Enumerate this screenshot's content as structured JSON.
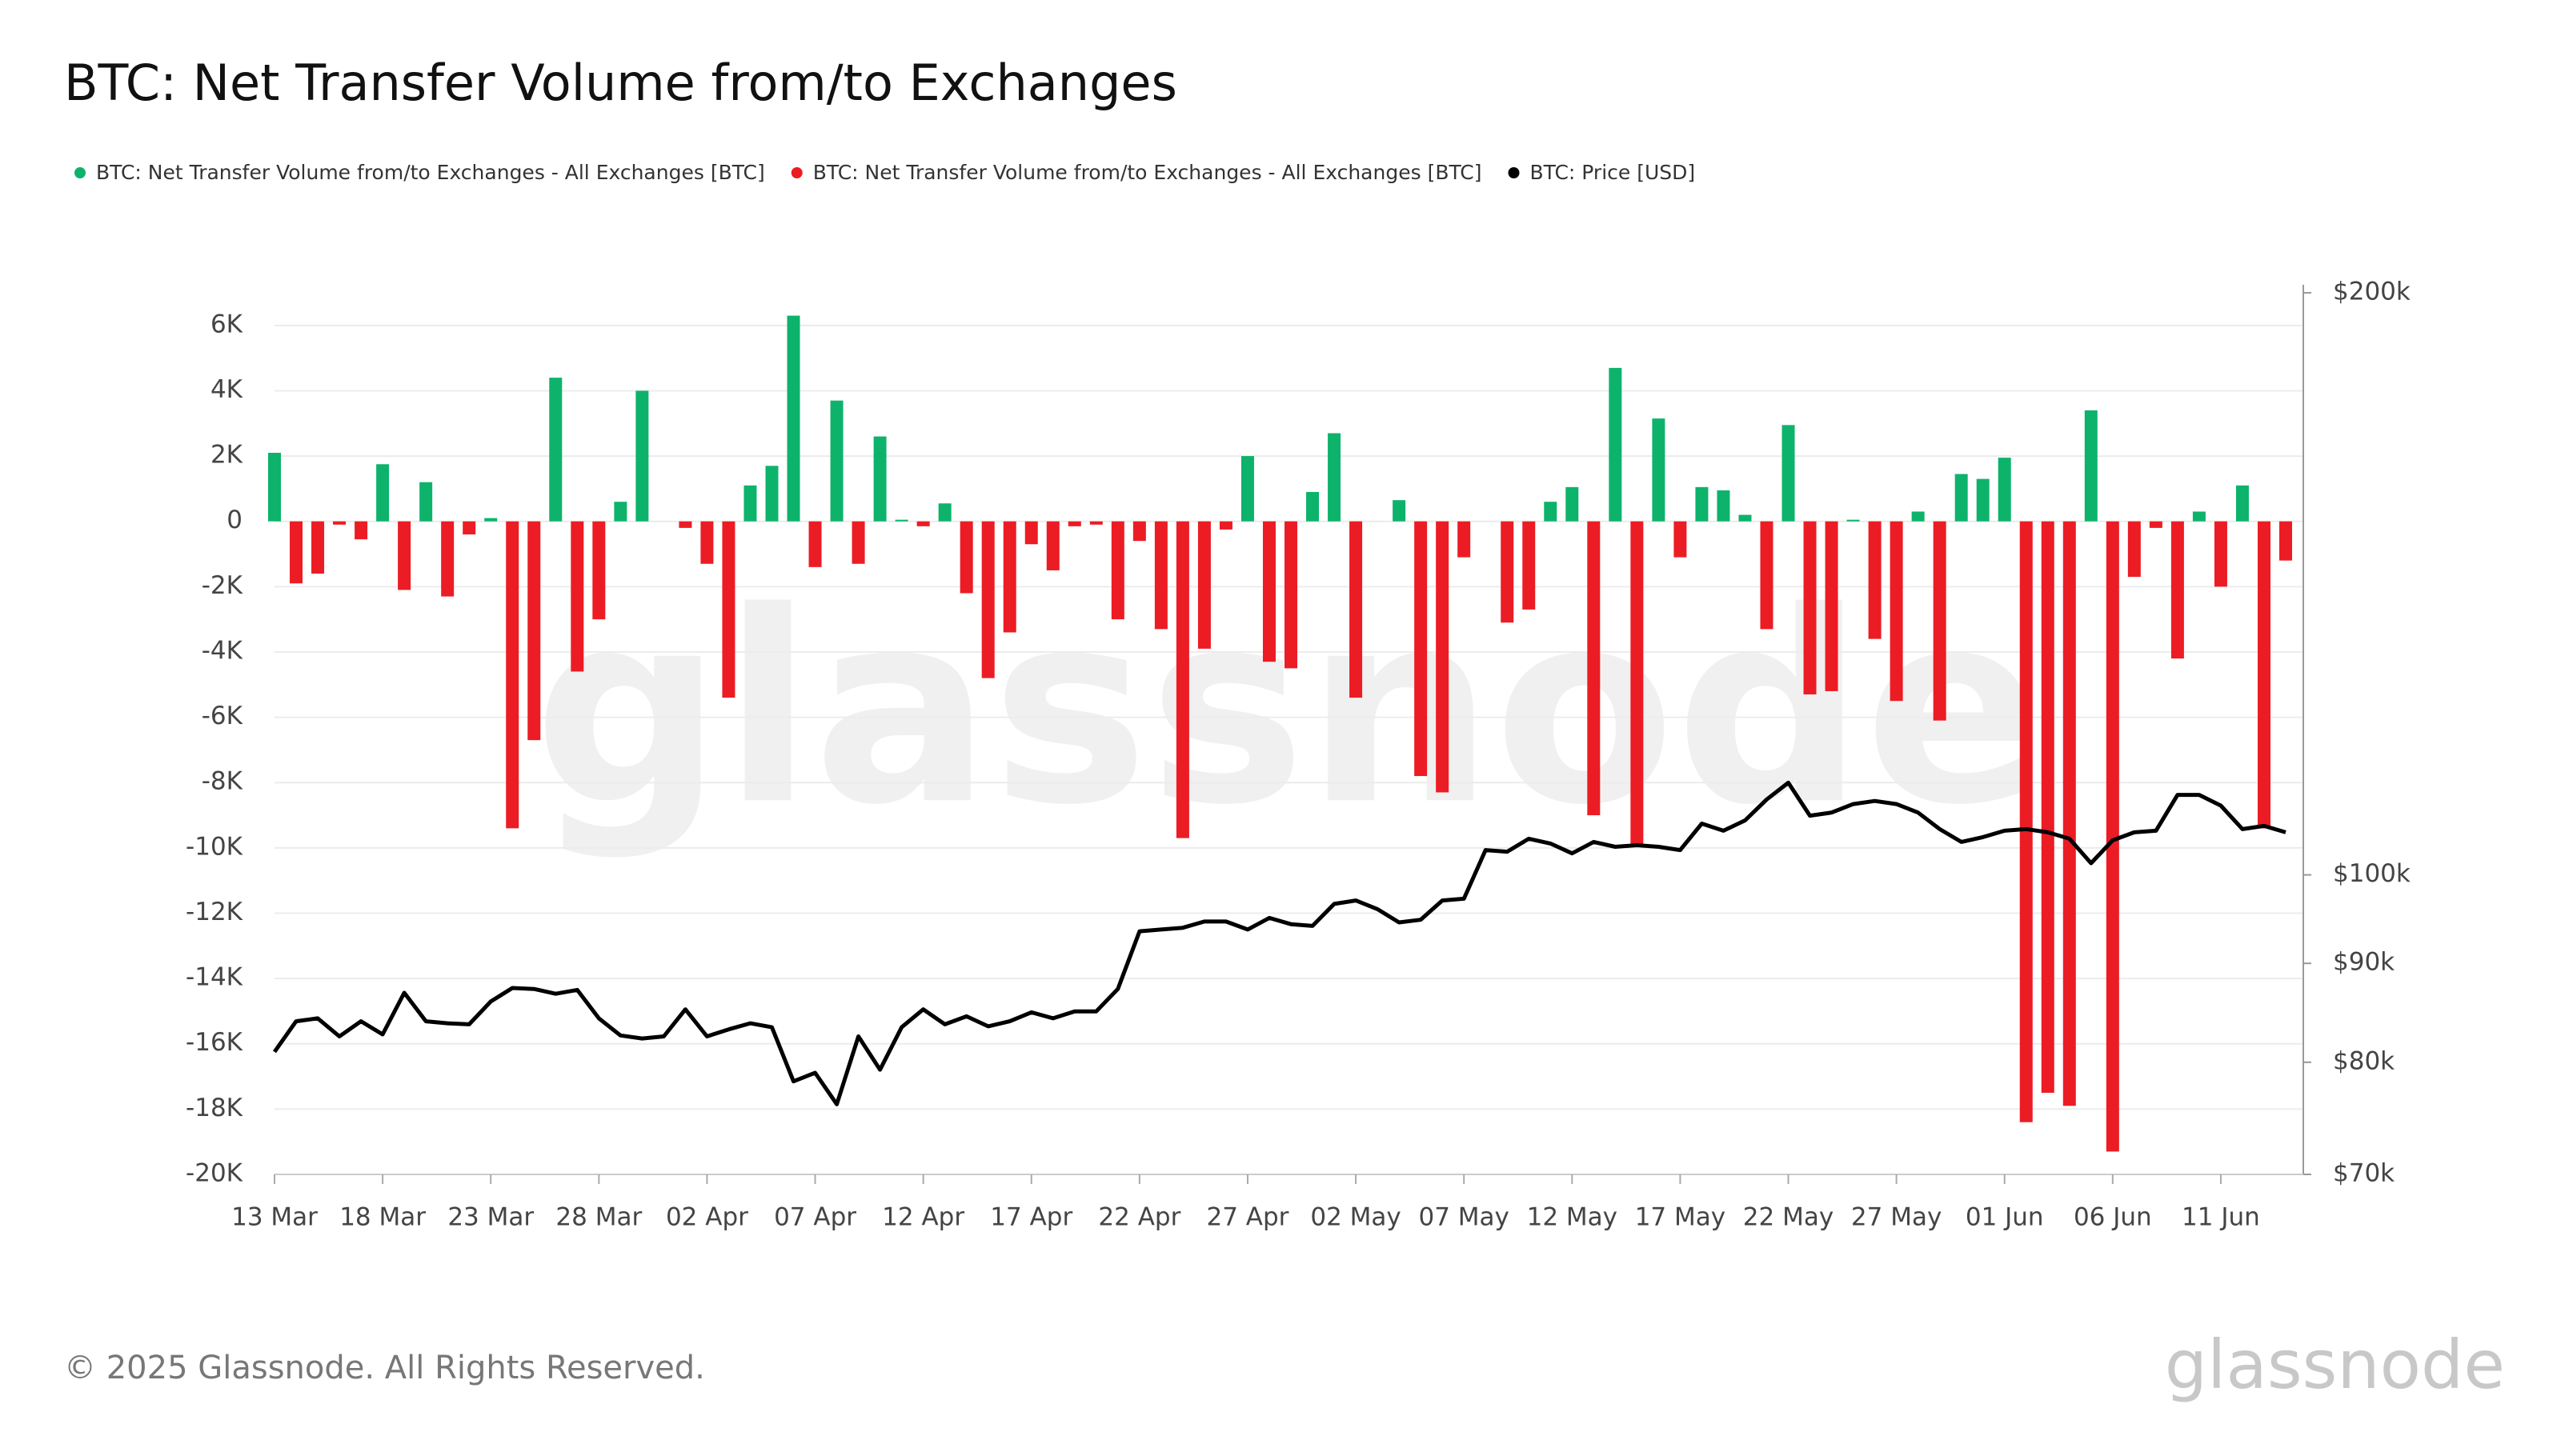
{
  "chart_data": {
    "type": "bar",
    "title": "BTC: Net Transfer Volume from/to Exchanges",
    "categories": [
      "13 Mar",
      null,
      null,
      null,
      null,
      "18 Mar",
      null,
      null,
      null,
      null,
      "23 Mar",
      null,
      null,
      null,
      null,
      "28 Mar",
      null,
      null,
      null,
      null,
      "02 Apr",
      null,
      null,
      null,
      null,
      "07 Apr",
      null,
      null,
      null,
      null,
      "12 Apr",
      null,
      null,
      null,
      null,
      "17 Apr",
      null,
      null,
      null,
      null,
      "22 Apr",
      null,
      null,
      null,
      null,
      "27 Apr",
      null,
      null,
      null,
      null,
      "02 May",
      null,
      null,
      null,
      null,
      "07 May",
      null,
      null,
      null,
      null,
      "12 May",
      null,
      null,
      null,
      null,
      "17 May",
      null,
      null,
      null,
      null,
      "22 May",
      null,
      null,
      null,
      null,
      "27 May",
      null,
      null,
      null,
      null,
      "01 Jun",
      null,
      null,
      null,
      null,
      "06 Jun",
      null,
      null,
      null,
      null,
      "11 Jun",
      null,
      null,
      null
    ],
    "series": [
      {
        "name": "BTC: Net Transfer Volume from/to Exchanges - All Exchanges [BTC]",
        "color": "#0db36b",
        "type": "bar",
        "values": [
          2100,
          null,
          null,
          null,
          null,
          1750,
          null,
          1200,
          null,
          null,
          100,
          null,
          null,
          4400,
          null,
          null,
          600,
          4000,
          0,
          null,
          null,
          null,
          1100,
          1700,
          6300,
          null,
          3700,
          null,
          2600,
          50,
          null,
          550,
          null,
          null,
          null,
          null,
          null,
          null,
          null,
          null,
          null,
          null,
          null,
          null,
          null,
          2000,
          null,
          null,
          900,
          2700,
          null,
          0,
          650,
          null,
          null,
          null,
          0,
          null,
          null,
          600,
          1050,
          null,
          4700,
          null,
          3150,
          null,
          1050,
          950,
          200,
          null,
          2950,
          null,
          null,
          50,
          null,
          null,
          300,
          null,
          1450,
          1300,
          1950,
          null,
          null,
          null,
          3400,
          null,
          null,
          null,
          null,
          300,
          null,
          1100,
          null,
          null
        ]
      },
      {
        "name": "BTC: Net Transfer Volume from/to Exchanges - All Exchanges [BTC]",
        "color": "#ec1c24",
        "type": "bar",
        "values": [
          null,
          -1900,
          -1600,
          -100,
          -550,
          null,
          -2100,
          null,
          -2300,
          -400,
          null,
          -9400,
          -6700,
          null,
          -4600,
          -3000,
          null,
          null,
          null,
          -200,
          -1300,
          -5400,
          null,
          null,
          null,
          -1400,
          null,
          -1300,
          null,
          null,
          -150,
          null,
          -2200,
          -4800,
          -3400,
          -700,
          -1500,
          -150,
          -100,
          -3000,
          -600,
          -3300,
          -9700,
          -3900,
          -250,
          null,
          -4300,
          -4500,
          null,
          null,
          -5400,
          null,
          null,
          -7800,
          -8300,
          -1100,
          null,
          -3100,
          -2700,
          null,
          null,
          -9000,
          null,
          -9900,
          null,
          -1100,
          null,
          null,
          null,
          -3300,
          null,
          -5300,
          -5200,
          null,
          -3600,
          -5500,
          null,
          -6100,
          null,
          null,
          null,
          -18400,
          -17500,
          -17900,
          null,
          -19300,
          -1700,
          -200,
          -4200,
          null,
          -2000,
          null,
          -9400,
          -1200
        ]
      },
      {
        "name": "BTC: Price [USD]",
        "color": "#000000",
        "type": "line",
        "axis": "y2",
        "values": [
          81000,
          84000,
          84300,
          82500,
          84000,
          82700,
          86900,
          84000,
          83800,
          83700,
          86000,
          87400,
          87300,
          86800,
          87200,
          84300,
          82600,
          82300,
          82500,
          85200,
          82500,
          83200,
          83800,
          83400,
          78200,
          79000,
          76100,
          82500,
          79300,
          83400,
          85200,
          83700,
          84500,
          83500,
          84000,
          84900,
          84300,
          85000,
          85000,
          87300,
          93500,
          93700,
          93900,
          94600,
          94600,
          93700,
          95000,
          94300,
          94100,
          96600,
          97000,
          96000,
          94500,
          94800,
          97000,
          97200,
          103000,
          102800,
          104400,
          103800,
          102600,
          104000,
          103400,
          103600,
          103400,
          103000,
          106300,
          105400,
          106700,
          109400,
          111600,
          107300,
          107700,
          108800,
          109200,
          108800,
          107700,
          105600,
          104000,
          104600,
          105400,
          105600,
          105200,
          104400,
          101400,
          104200,
          105200,
          105400,
          110000,
          110000,
          108600,
          105600,
          106000,
          105200
        ]
      }
    ],
    "ylim": [
      -20000,
      7000
    ],
    "yticks": [
      {
        "value": -20000,
        "label": "-20K"
      },
      {
        "value": -18000,
        "label": "-18K"
      },
      {
        "value": -16000,
        "label": "-16K"
      },
      {
        "value": -14000,
        "label": "-14K"
      },
      {
        "value": -12000,
        "label": "-12K"
      },
      {
        "value": -10000,
        "label": "-10K"
      },
      {
        "value": -8000,
        "label": "-8K"
      },
      {
        "value": -6000,
        "label": "-6K"
      },
      {
        "value": -4000,
        "label": "-4K"
      },
      {
        "value": -2000,
        "label": "-2K"
      },
      0,
      {
        "value": 2000,
        "label": "2K"
      },
      {
        "value": 4000,
        "label": "4K"
      },
      {
        "value": 6000,
        "label": "6K"
      }
    ],
    "y2lim": [
      70000,
      200000
    ],
    "y2ticks": [
      {
        "value": 70000,
        "label": "$70k"
      },
      {
        "value": 80000,
        "label": "$80k"
      },
      {
        "value": 90000,
        "label": "$90k"
      },
      {
        "value": 100000,
        "label": "$100k"
      },
      {
        "value": 200000,
        "label": "$200k"
      }
    ],
    "y2log": true,
    "grid": true,
    "watermark": "glassnode"
  },
  "footer": "© 2025 Glassnode. All Rights Reserved.",
  "logo": "glassnode"
}
